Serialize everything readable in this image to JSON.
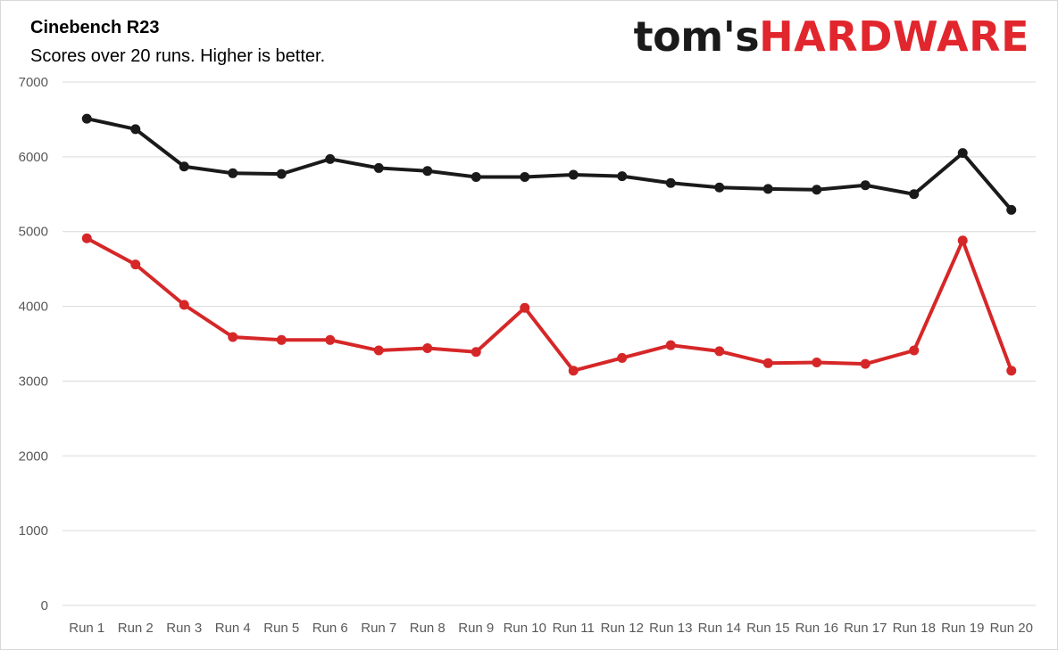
{
  "logo": {
    "part1": "tom's",
    "part2": "HARDWARE"
  },
  "chart_data": {
    "type": "line",
    "title": "Cinebench R23",
    "subtitle": "Scores over 20 runs. Higher is better.",
    "xlabel": "",
    "ylabel": "",
    "ylim": [
      0,
      7000
    ],
    "yticks": [
      0,
      1000,
      2000,
      3000,
      4000,
      5000,
      6000,
      7000
    ],
    "grid": true,
    "legend": "none",
    "categories": [
      "Run 1",
      "Run 2",
      "Run 3",
      "Run 4",
      "Run 5",
      "Run 6",
      "Run 7",
      "Run 8",
      "Run 9",
      "Run 10",
      "Run 11",
      "Run 12",
      "Run 13",
      "Run 14",
      "Run 15",
      "Run 16",
      "Run 17",
      "Run 18",
      "Run 19",
      "Run 20"
    ],
    "series": [
      {
        "color": "#1a1a1a",
        "values": [
          6510,
          6370,
          5870,
          5780,
          5770,
          5970,
          5850,
          5810,
          5730,
          5730,
          5760,
          5740,
          5650,
          5590,
          5570,
          5560,
          5620,
          5500,
          6050,
          5290
        ]
      },
      {
        "color": "#d62728",
        "values": [
          4910,
          4560,
          4020,
          3590,
          3550,
          3550,
          3410,
          3440,
          3390,
          3980,
          3140,
          3310,
          3480,
          3400,
          3240,
          3250,
          3230,
          3410,
          4880,
          3140
        ]
      }
    ]
  }
}
